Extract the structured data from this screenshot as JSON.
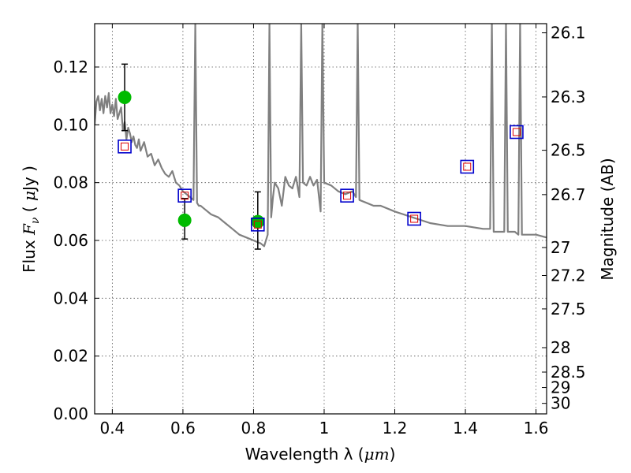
{
  "chart_data": {
    "type": "scatter",
    "title": "",
    "xlabel_text": "Wavelength  λ (",
    "xlabel_unit": "μm",
    "xlabel_close": ")",
    "ylabel_prefix": "Flux  ",
    "ylabel_symbol": "F",
    "ylabel_sub": "ν",
    "ylabel_open": "  ( ",
    "ylabel_mu": "μ",
    "ylabel_unit": "Jy )",
    "y2label": "Magnitude (AB)",
    "xlim": [
      0.35,
      1.63
    ],
    "ylim": [
      0.0,
      0.135
    ],
    "x_ticks": [
      {
        "value": 0.4,
        "label": "0.4"
      },
      {
        "value": 0.6,
        "label": "0.6"
      },
      {
        "value": 0.8,
        "label": "0.8"
      },
      {
        "value": 1.0,
        "label": "1"
      },
      {
        "value": 1.2,
        "label": "1.2"
      },
      {
        "value": 1.4,
        "label": "1.4"
      },
      {
        "value": 1.6,
        "label": "1.6"
      }
    ],
    "y_ticks": [
      {
        "value": 0.0,
        "label": "0.00"
      },
      {
        "value": 0.02,
        "label": "0.02"
      },
      {
        "value": 0.04,
        "label": "0.04"
      },
      {
        "value": 0.06,
        "label": "0.06"
      },
      {
        "value": 0.08,
        "label": "0.08"
      },
      {
        "value": 0.1,
        "label": "0.10"
      },
      {
        "value": 0.12,
        "label": "0.12"
      }
    ],
    "y2_ticks": [
      {
        "value": 26.1,
        "label": "26.1"
      },
      {
        "value": 26.3,
        "label": "26.3"
      },
      {
        "value": 26.5,
        "label": "26.5"
      },
      {
        "value": 26.7,
        "label": "26.7"
      },
      {
        "value": 27.0,
        "label": "27"
      },
      {
        "value": 27.2,
        "label": "27.2"
      },
      {
        "value": 27.5,
        "label": "27.5"
      },
      {
        "value": 28.0,
        "label": "28"
      },
      {
        "value": 28.5,
        "label": "28.5"
      },
      {
        "value": 29.0,
        "label": "29"
      },
      {
        "value": 30.0,
        "label": "30"
      }
    ],
    "grid": true,
    "colors": {
      "model": "#808080",
      "observed": "#00bb00",
      "errorbar": "#000000",
      "model_box": "#0000cc",
      "model_box_inner": "#dd0000",
      "grid": "#555555"
    },
    "series": [
      {
        "kind": "spectrum",
        "x": [
          0.35,
          0.355,
          0.36,
          0.365,
          0.37,
          0.375,
          0.38,
          0.385,
          0.39,
          0.395,
          0.4,
          0.405,
          0.41,
          0.415,
          0.42,
          0.425,
          0.43,
          0.435,
          0.44,
          0.445,
          0.45,
          0.455,
          0.46,
          0.465,
          0.47,
          0.475,
          0.48,
          0.49,
          0.5,
          0.51,
          0.52,
          0.53,
          0.54,
          0.55,
          0.56,
          0.57,
          0.58,
          0.59,
          0.6,
          0.61,
          0.62,
          0.63,
          0.635,
          0.64,
          0.645,
          0.65,
          0.66,
          0.68,
          0.7,
          0.72,
          0.74,
          0.76,
          0.78,
          0.8,
          0.82,
          0.83,
          0.84,
          0.845,
          0.85,
          0.855,
          0.86,
          0.87,
          0.88,
          0.89,
          0.9,
          0.91,
          0.92,
          0.93,
          0.935,
          0.94,
          0.95,
          0.96,
          0.97,
          0.98,
          0.99,
          0.995,
          1.0,
          1.02,
          1.04,
          1.06,
          1.08,
          1.09,
          1.095,
          1.1,
          1.12,
          1.14,
          1.16,
          1.2,
          1.25,
          1.3,
          1.35,
          1.4,
          1.45,
          1.47,
          1.475,
          1.48,
          1.5,
          1.51,
          1.515,
          1.52,
          1.53,
          1.54,
          1.55,
          1.555,
          1.56,
          1.6,
          1.63
        ],
        "y": [
          0.1,
          0.108,
          0.11,
          0.105,
          0.109,
          0.104,
          0.11,
          0.106,
          0.111,
          0.104,
          0.107,
          0.103,
          0.109,
          0.102,
          0.104,
          0.106,
          0.098,
          0.101,
          0.095,
          0.099,
          0.097,
          0.094,
          0.096,
          0.093,
          0.092,
          0.095,
          0.091,
          0.094,
          0.089,
          0.09,
          0.086,
          0.088,
          0.085,
          0.083,
          0.082,
          0.084,
          0.08,
          0.079,
          0.077,
          0.076,
          0.075,
          0.074,
          0.135,
          0.073,
          0.072,
          0.072,
          0.071,
          0.069,
          0.068,
          0.066,
          0.064,
          0.062,
          0.061,
          0.06,
          0.059,
          0.058,
          0.062,
          0.135,
          0.068,
          0.075,
          0.08,
          0.078,
          0.072,
          0.082,
          0.079,
          0.078,
          0.082,
          0.075,
          0.135,
          0.08,
          0.079,
          0.082,
          0.079,
          0.081,
          0.07,
          0.135,
          0.08,
          0.079,
          0.077,
          0.076,
          0.077,
          0.075,
          0.135,
          0.074,
          0.073,
          0.072,
          0.072,
          0.07,
          0.068,
          0.066,
          0.065,
          0.065,
          0.064,
          0.064,
          0.135,
          0.063,
          0.063,
          0.063,
          0.135,
          0.063,
          0.063,
          0.063,
          0.062,
          0.135,
          0.062,
          0.062,
          0.061
        ]
      },
      {
        "kind": "observed",
        "x": [
          0.435,
          0.605,
          0.812
        ],
        "y": [
          0.1095,
          0.067,
          0.0665
        ],
        "yerr_low": [
          0.098,
          0.0605,
          0.057
        ],
        "yerr_high": [
          0.121,
          0.0745,
          0.0768
        ]
      },
      {
        "kind": "model_photometry",
        "x": [
          0.435,
          0.605,
          0.812,
          1.065,
          1.255,
          1.405,
          1.545
        ],
        "y": [
          0.0925,
          0.0755,
          0.0655,
          0.0755,
          0.0675,
          0.0855,
          0.0975
        ]
      }
    ]
  }
}
